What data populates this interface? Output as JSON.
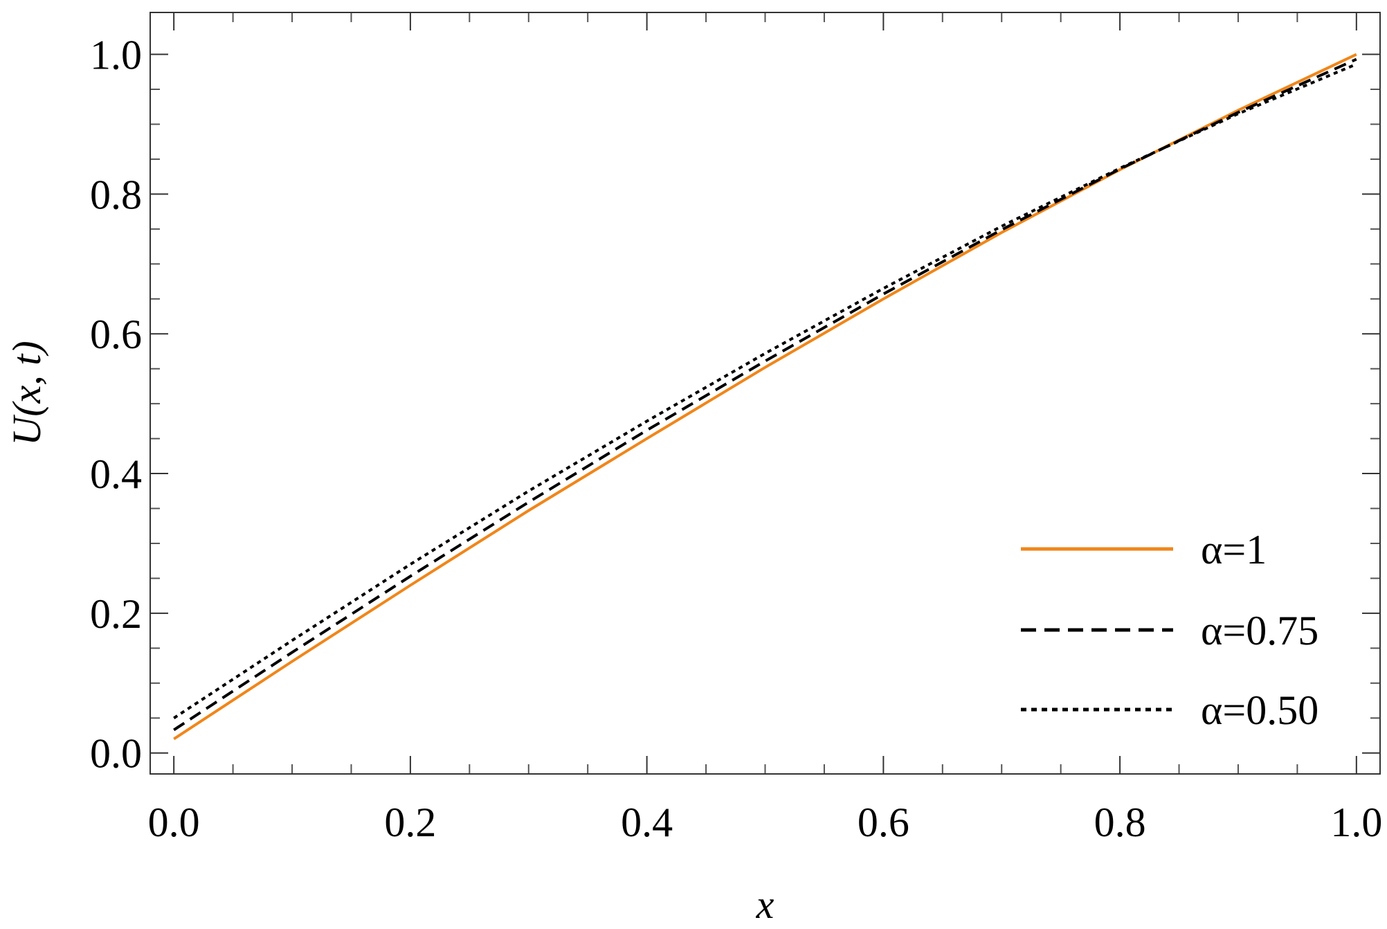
{
  "chart_data": {
    "type": "line",
    "xlabel": "x",
    "ylabel": "U(x, t)",
    "xlim": [
      -0.02,
      1.02
    ],
    "ylim": [
      -0.03,
      1.06
    ],
    "xticks": [
      "0.0",
      "0.2",
      "0.4",
      "0.6",
      "0.8",
      "1.0"
    ],
    "yticks": [
      "0.0",
      "0.2",
      "0.4",
      "0.6",
      "0.8",
      "1.0"
    ],
    "grid": false,
    "legend_position": "bottom-right",
    "series": [
      {
        "name": "α=1",
        "color": "#f0861a",
        "style": "solid",
        "x": [
          0.0,
          0.1,
          0.2,
          0.3,
          0.4,
          0.5,
          0.6,
          0.7,
          0.8,
          0.9,
          1.0
        ],
        "y": [
          0.02,
          0.131,
          0.24,
          0.347,
          0.45,
          0.552,
          0.65,
          0.745,
          0.835,
          0.92,
          1.0
        ]
      },
      {
        "name": "α=0.75",
        "color": "#000000",
        "style": "dashed",
        "x": [
          0.0,
          0.1,
          0.2,
          0.3,
          0.4,
          0.5,
          0.6,
          0.7,
          0.8,
          0.9,
          1.0
        ],
        "y": [
          0.033,
          0.144,
          0.253,
          0.359,
          0.462,
          0.561,
          0.657,
          0.749,
          0.836,
          0.917,
          0.993
        ]
      },
      {
        "name": "α=0.50",
        "color": "#000000",
        "style": "dotted",
        "x": [
          0.0,
          0.1,
          0.2,
          0.3,
          0.4,
          0.5,
          0.6,
          0.7,
          0.8,
          0.9,
          1.0
        ],
        "y": [
          0.05,
          0.161,
          0.27,
          0.375,
          0.475,
          0.572,
          0.665,
          0.754,
          0.837,
          0.915,
          0.986
        ]
      }
    ]
  }
}
